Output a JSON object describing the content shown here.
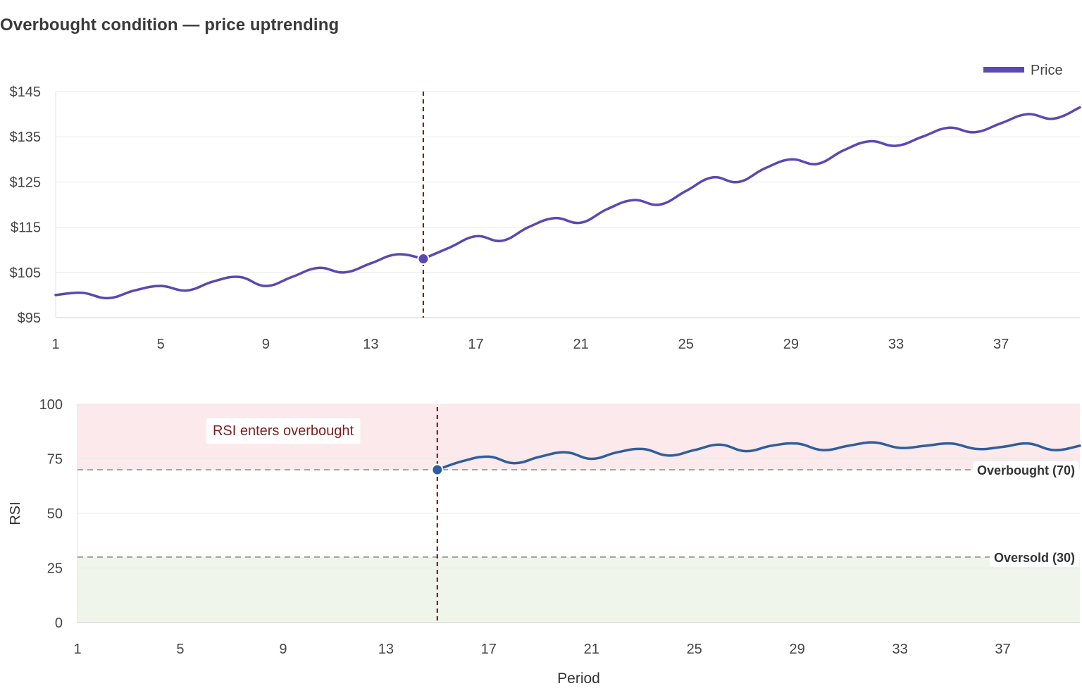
{
  "title": "Overbought condition — price uptrending",
  "colors": {
    "price": "#5a48b3",
    "rsi": "#2f5e9e",
    "marker_line": "#7a1f1f",
    "overbought_zone": "#fbe9eb",
    "oversold_zone": "#eff5ea",
    "grid": "#e9e9e9",
    "ref_line": "#888888",
    "text": "#444444"
  },
  "chart_data": [
    {
      "type": "line",
      "legend": {
        "label": "Price",
        "placement": "top-right"
      },
      "x": [
        1,
        2,
        3,
        4,
        5,
        6,
        7,
        8,
        9,
        10,
        11,
        12,
        13,
        14,
        15,
        16,
        17,
        18,
        19,
        20,
        21,
        22,
        23,
        24,
        25,
        26,
        27,
        28,
        29,
        30,
        31,
        32,
        33,
        34,
        35,
        36,
        37,
        38,
        39,
        40
      ],
      "x_ticks": [
        "1",
        "5",
        "9",
        "13",
        "17",
        "21",
        "25",
        "29",
        "33",
        "37"
      ],
      "series": [
        {
          "name": "Price",
          "values": [
            100,
            100.5,
            99.3,
            101,
            102,
            101,
            103,
            104,
            102,
            104,
            106,
            105,
            107,
            109,
            108,
            110.5,
            113,
            112,
            115,
            117,
            116,
            119,
            121,
            120,
            123,
            126,
            125,
            128,
            130,
            129,
            132,
            134,
            133,
            135,
            137,
            136,
            138,
            140,
            139,
            141.5
          ]
        }
      ],
      "ylim": [
        95,
        145
      ],
      "y_ticks": [
        "$95",
        "$105",
        "$115",
        "$125",
        "$135",
        "$145"
      ],
      "highlight": {
        "x": 15,
        "value": 108
      },
      "grid": true
    },
    {
      "type": "line",
      "x": [
        15,
        16,
        17,
        18,
        19,
        20,
        21,
        22,
        23,
        24,
        25,
        26,
        27,
        28,
        29,
        30,
        31,
        32,
        33,
        34,
        35,
        36,
        37,
        38,
        39,
        40
      ],
      "x_ticks": [
        "1",
        "5",
        "9",
        "13",
        "17",
        "21",
        "25",
        "29",
        "33",
        "37"
      ],
      "series": [
        {
          "name": "RSI",
          "values": [
            70,
            74,
            76,
            73,
            76,
            78,
            75,
            78,
            79.5,
            76.5,
            79,
            81.5,
            78.5,
            81,
            82,
            79,
            81,
            82.5,
            80,
            81,
            82,
            79.5,
            80.5,
            82,
            79,
            81
          ]
        }
      ],
      "ylim": [
        0,
        100
      ],
      "y_ticks": [
        "0",
        "25",
        "50",
        "75",
        "100"
      ],
      "xlabel": "Period",
      "ylabel": "RSI",
      "highlight": {
        "x": 15,
        "value": 70
      },
      "reference_lines": [
        {
          "value": 70,
          "label": "Overbought (70)"
        },
        {
          "value": 30,
          "label": "Oversold (30)"
        }
      ],
      "annotation": "RSI enters overbought",
      "grid": true
    }
  ]
}
